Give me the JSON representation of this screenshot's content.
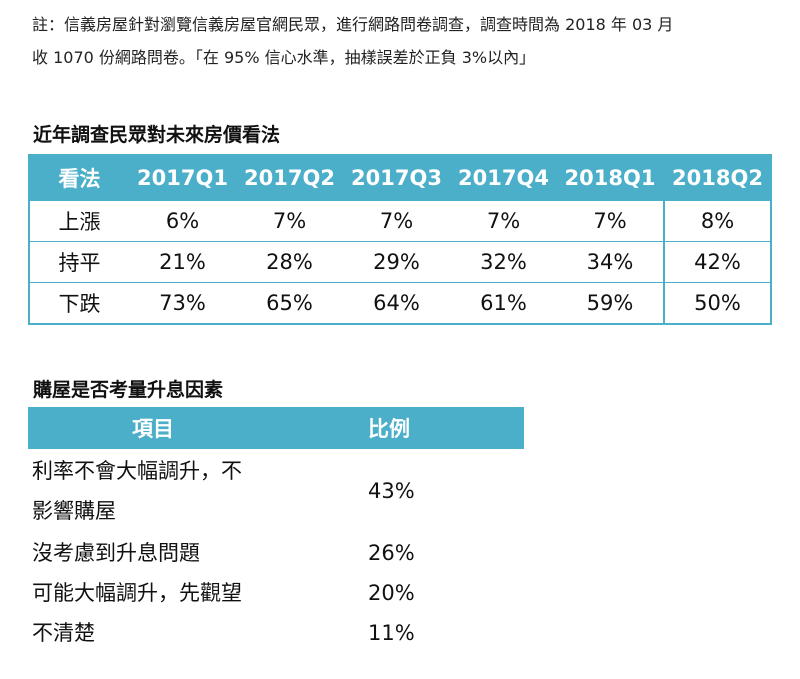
{
  "note": {
    "line1": "註：信義房屋針對瀏覽信義房屋官網民眾，進行網路問卷調查，調查時間為 2018 年 03 月",
    "line2": "收 1070 份網路問卷。「在  95%  信心水準，抽樣誤差於正負 3%以內」"
  },
  "table1": {
    "title": "近年調查民眾對未來房價看法",
    "headers": [
      "看法",
      "2017Q1",
      "2017Q2",
      "2017Q3",
      "2017Q4",
      "2018Q1",
      "2018Q2"
    ],
    "rows": [
      [
        "上漲",
        "6%",
        "7%",
        "7%",
        "7%",
        "7%",
        "8%"
      ],
      [
        "持平",
        "21%",
        "28%",
        "29%",
        "32%",
        "34%",
        "42%"
      ],
      [
        "下跌",
        "73%",
        "65%",
        "64%",
        "61%",
        "59%",
        "50%"
      ]
    ]
  },
  "table2": {
    "title": "購屋是否考量升息因素",
    "headers": [
      "項目",
      "比例"
    ],
    "rows": [
      {
        "item_line1": "利率不會大幅調升，不",
        "item_line2": "影響購屋",
        "ratio": "43%"
      },
      {
        "item_line1": "沒考慮到升息問題",
        "ratio": "26%"
      },
      {
        "item_line1": "可能大幅調升，先觀望",
        "ratio": "20%"
      },
      {
        "item_line1": "不清楚",
        "ratio": "11%"
      }
    ]
  }
}
